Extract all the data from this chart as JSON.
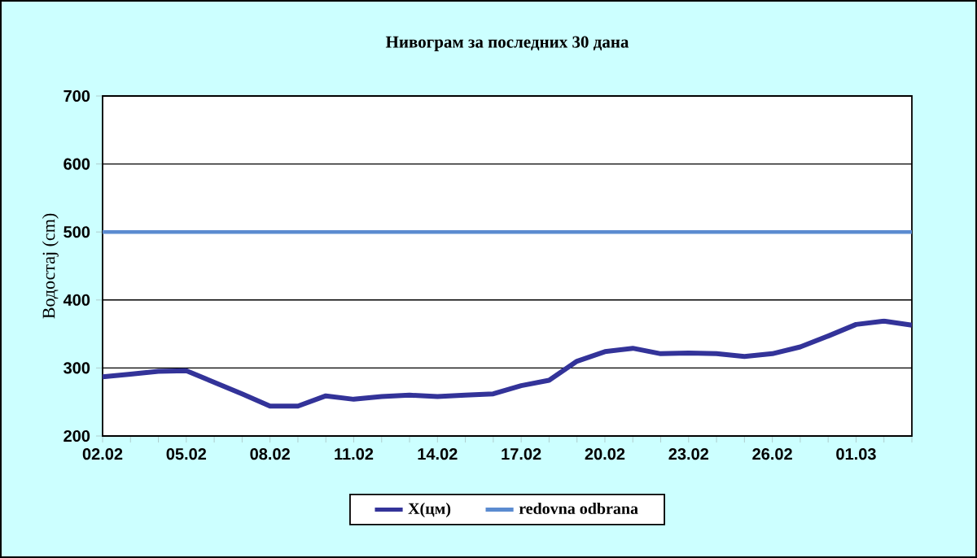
{
  "chart_data": {
    "type": "line",
    "title": "Нивограм за последних 30 дана",
    "ylabel": "Водостај (cm)",
    "categories": [
      "02.02",
      null,
      null,
      "05.02",
      null,
      null,
      "08.02",
      null,
      null,
      "11.02",
      null,
      null,
      "14.02",
      null,
      null,
      "17.02",
      null,
      null,
      "20.02",
      null,
      null,
      "23.02",
      null,
      null,
      "26.02",
      null,
      null,
      "01.03",
      null,
      null
    ],
    "series": [
      {
        "name": "X(цм)",
        "color": "#333399",
        "values": [
          287,
          291,
          295,
          296,
          279,
          262,
          244,
          244,
          259,
          254,
          258,
          260,
          258,
          260,
          262,
          274,
          282,
          310,
          324,
          329,
          321,
          322,
          321,
          317,
          321,
          331,
          347,
          364,
          369,
          363
        ]
      }
    ],
    "ref_lines": [
      {
        "axis": "y",
        "value": 500,
        "label": "redovna odbrana",
        "color": "#5b8bd0"
      }
    ],
    "ylim": [
      200,
      700
    ],
    "yticks": [
      200,
      300,
      400,
      500,
      600,
      700
    ],
    "grid": "y",
    "legend": "bottom",
    "marker": "none",
    "line_style": "solid"
  }
}
